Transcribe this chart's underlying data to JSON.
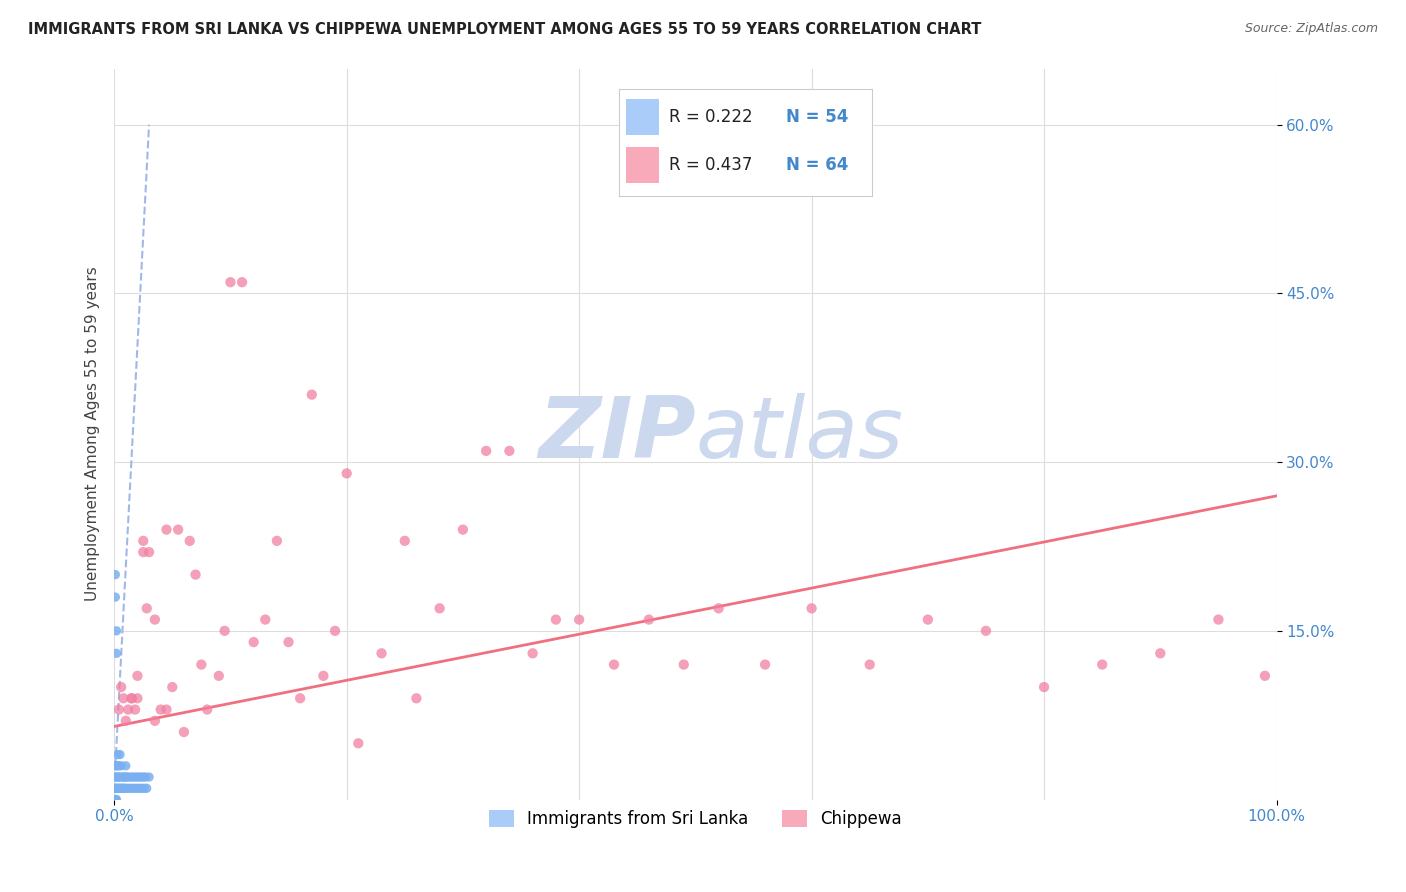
{
  "title": "IMMIGRANTS FROM SRI LANKA VS CHIPPEWA UNEMPLOYMENT AMONG AGES 55 TO 59 YEARS CORRELATION CHART",
  "source": "Source: ZipAtlas.com",
  "ylabel": "Unemployment Among Ages 55 to 59 years",
  "xmin": 0.0,
  "xmax": 1.0,
  "ymin": 0.0,
  "ymax": 0.65,
  "ytick_values": [
    0.15,
    0.3,
    0.45,
    0.6
  ],
  "ytick_labels": [
    "15.0%",
    "30.0%",
    "45.0%",
    "60.0%"
  ],
  "xtick_values": [
    0.0,
    1.0
  ],
  "xtick_labels": [
    "0.0%",
    "100.0%"
  ],
  "legend1_R": "0.222",
  "legend1_N": "54",
  "legend2_R": "0.437",
  "legend2_N": "64",
  "legend1_color": "#aaccf8",
  "legend2_color": "#f8aabb",
  "scatter1_color": "#7ab0f0",
  "scatter2_color": "#f080a0",
  "trendline1_color": "#a0b8e8",
  "trendline2_color": "#f07080",
  "watermark_color": "#ccd8ee",
  "title_color": "#222222",
  "axis_label_color": "#4488cc",
  "grid_color": "#dddddd",
  "sri_lanka_x": [
    0.001,
    0.001,
    0.001,
    0.001,
    0.001,
    0.001,
    0.001,
    0.001,
    0.002,
    0.002,
    0.002,
    0.002,
    0.002,
    0.002,
    0.003,
    0.003,
    0.003,
    0.003,
    0.004,
    0.004,
    0.004,
    0.005,
    0.005,
    0.005,
    0.006,
    0.006,
    0.007,
    0.007,
    0.008,
    0.008,
    0.009,
    0.009,
    0.01,
    0.01,
    0.01,
    0.011,
    0.012,
    0.013,
    0.014,
    0.015,
    0.016,
    0.017,
    0.018,
    0.019,
    0.02,
    0.021,
    0.022,
    0.023,
    0.024,
    0.025,
    0.026,
    0.027,
    0.028,
    0.03
  ],
  "sri_lanka_y": [
    0.2,
    0.18,
    0.03,
    0.02,
    0.01,
    0.01,
    0.0,
    0.0,
    0.15,
    0.13,
    0.03,
    0.02,
    0.01,
    0.0,
    0.04,
    0.03,
    0.02,
    0.01,
    0.03,
    0.02,
    0.01,
    0.04,
    0.02,
    0.01,
    0.03,
    0.01,
    0.02,
    0.01,
    0.02,
    0.01,
    0.02,
    0.01,
    0.03,
    0.02,
    0.01,
    0.02,
    0.01,
    0.02,
    0.01,
    0.02,
    0.01,
    0.02,
    0.01,
    0.02,
    0.01,
    0.02,
    0.01,
    0.02,
    0.01,
    0.02,
    0.01,
    0.02,
    0.01,
    0.02
  ],
  "chippewa_x": [
    0.004,
    0.006,
    0.008,
    0.01,
    0.012,
    0.015,
    0.018,
    0.02,
    0.025,
    0.028,
    0.03,
    0.035,
    0.04,
    0.045,
    0.05,
    0.06,
    0.065,
    0.07,
    0.08,
    0.09,
    0.1,
    0.11,
    0.12,
    0.13,
    0.14,
    0.15,
    0.16,
    0.17,
    0.18,
    0.19,
    0.2,
    0.21,
    0.23,
    0.25,
    0.26,
    0.28,
    0.3,
    0.32,
    0.34,
    0.36,
    0.38,
    0.4,
    0.43,
    0.46,
    0.49,
    0.52,
    0.56,
    0.6,
    0.65,
    0.7,
    0.75,
    0.8,
    0.85,
    0.9,
    0.95,
    0.99,
    0.02,
    0.035,
    0.055,
    0.075,
    0.095,
    0.015,
    0.025,
    0.045
  ],
  "chippewa_y": [
    0.08,
    0.1,
    0.09,
    0.07,
    0.08,
    0.09,
    0.08,
    0.09,
    0.23,
    0.17,
    0.22,
    0.07,
    0.08,
    0.24,
    0.1,
    0.06,
    0.23,
    0.2,
    0.08,
    0.11,
    0.46,
    0.46,
    0.14,
    0.16,
    0.23,
    0.14,
    0.09,
    0.36,
    0.11,
    0.15,
    0.29,
    0.05,
    0.13,
    0.23,
    0.09,
    0.17,
    0.24,
    0.31,
    0.31,
    0.13,
    0.16,
    0.16,
    0.12,
    0.16,
    0.12,
    0.17,
    0.12,
    0.17,
    0.12,
    0.16,
    0.15,
    0.1,
    0.12,
    0.13,
    0.16,
    0.11,
    0.11,
    0.16,
    0.24,
    0.12,
    0.15,
    0.09,
    0.22,
    0.08
  ],
  "trendline1_x": [
    0.001,
    0.03
  ],
  "trendline1_y": [
    0.03,
    0.6
  ],
  "trendline2_x": [
    0.0,
    1.0
  ],
  "trendline2_y": [
    0.065,
    0.27
  ]
}
